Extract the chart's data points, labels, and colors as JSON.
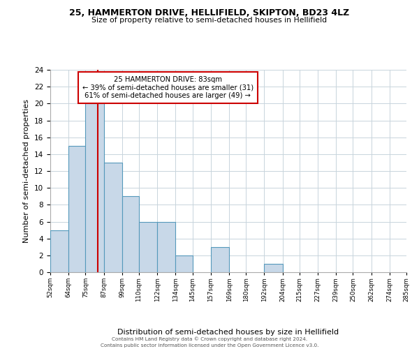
{
  "title": "25, HAMMERTON DRIVE, HELLIFIELD, SKIPTON, BD23 4LZ",
  "subtitle": "Size of property relative to semi-detached houses in Hellifield",
  "xlabel": "Distribution of semi-detached houses by size in Hellifield",
  "ylabel": "Number of semi-detached properties",
  "bar_color": "#c8d8e8",
  "bar_edge_color": "#5599bb",
  "annotation_title": "25 HAMMERTON DRIVE: 83sqm",
  "annotation_line1": "← 39% of semi-detached houses are smaller (31)",
  "annotation_line2": "61% of semi-detached houses are larger (49) →",
  "vline_color": "#cc0000",
  "vline_x": 83,
  "bin_edges": [
    52,
    64,
    75,
    87,
    99,
    110,
    122,
    134,
    145,
    157,
    169,
    180,
    192,
    204,
    215,
    227,
    239,
    250,
    262,
    274,
    285
  ],
  "bin_labels": [
    "52sqm",
    "64sqm",
    "75sqm",
    "87sqm",
    "99sqm",
    "110sqm",
    "122sqm",
    "134sqm",
    "145sqm",
    "157sqm",
    "169sqm",
    "180sqm",
    "192sqm",
    "204sqm",
    "215sqm",
    "227sqm",
    "239sqm",
    "250sqm",
    "262sqm",
    "274sqm",
    "285sqm"
  ],
  "counts": [
    5,
    15,
    20,
    13,
    9,
    6,
    6,
    2,
    0,
    3,
    0,
    0,
    1,
    0,
    0,
    0,
    0,
    0,
    0,
    0
  ],
  "ylim": [
    0,
    24
  ],
  "yticks": [
    0,
    2,
    4,
    6,
    8,
    10,
    12,
    14,
    16,
    18,
    20,
    22,
    24
  ],
  "footer1": "Contains HM Land Registry data © Crown copyright and database right 2024.",
  "footer2": "Contains public sector information licensed under the Open Government Licence v3.0.",
  "background_color": "#ffffff",
  "grid_color": "#c8d4dc"
}
